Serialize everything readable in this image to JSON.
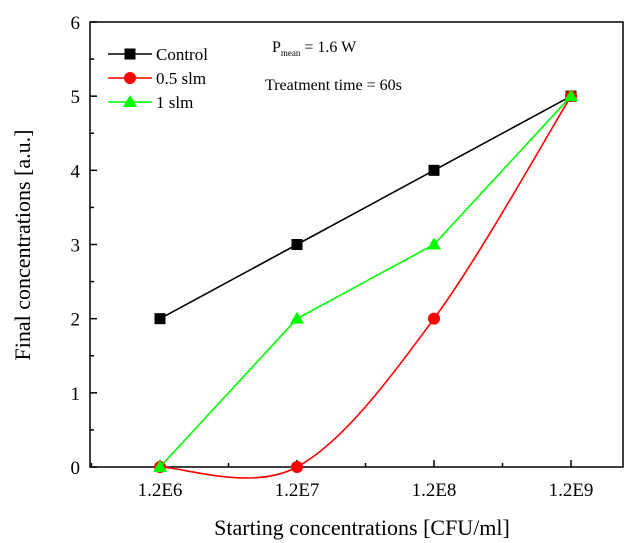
{
  "chart_data": {
    "type": "line",
    "categories": [
      "1.2E6",
      "1.2E7",
      "1.2E8",
      "1.2E9"
    ],
    "xlabel": "Starting concentrations [CFU/ml]",
    "ylabel": "Final concentrations [a.u.]",
    "ylim": [
      0,
      6
    ],
    "yticks": [
      "0",
      "1",
      "2",
      "3",
      "4",
      "5",
      "6"
    ],
    "grid": false,
    "legend_position": "top-left",
    "annotations": {
      "power_symbol": "P",
      "power_subscript": "mean",
      "power_value": " = 1.6 W",
      "treatment": "Treatment time  = 60s"
    },
    "series": [
      {
        "name": "Control",
        "values": [
          2,
          3,
          4,
          5
        ],
        "color": "#000000",
        "marker": "square"
      },
      {
        "name": "0.5 slm",
        "values": [
          0,
          0,
          2,
          5
        ],
        "color": "#ff0000",
        "marker": "circle"
      },
      {
        "name": "1 slm",
        "values": [
          0,
          2,
          3,
          5
        ],
        "color": "#00ff00",
        "marker": "triangle"
      }
    ]
  }
}
